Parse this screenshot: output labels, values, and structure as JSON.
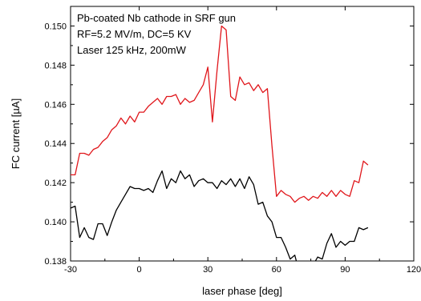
{
  "chart_data": {
    "type": "line",
    "xlabel": "laser phase [deg]",
    "ylabel": "FC current [µA]",
    "xlim": [
      -30,
      120
    ],
    "ylim": [
      0.138,
      0.151
    ],
    "x_ticks": [
      -30,
      0,
      30,
      60,
      90,
      120
    ],
    "x_tick_labels": [
      "-30",
      "0",
      "30",
      "60",
      "90",
      "120"
    ],
    "y_ticks": [
      0.138,
      0.14,
      0.142,
      0.144,
      0.146,
      0.148,
      0.15
    ],
    "y_tick_labels": [
      "0.138",
      "0.140",
      "0.142",
      "0.144",
      "0.146",
      "0.148",
      "0.150"
    ],
    "annotation": [
      "Pb-coated Nb cathode in SRF gun",
      "RF=5.2 MV/m, DC=5 KV",
      "Laser 125 kHz, 200mW"
    ],
    "grid": false,
    "series": [
      {
        "color": "#e0161b",
        "x": [
          -30,
          -28,
          -26,
          -24,
          -22,
          -20,
          -18,
          -16,
          -14,
          -12,
          -10,
          -8,
          -6,
          -4,
          -2,
          0,
          2,
          4,
          6,
          8,
          10,
          12,
          14,
          16,
          18,
          20,
          22,
          24,
          26,
          28,
          30,
          32,
          34,
          36,
          38,
          40,
          42,
          44,
          46,
          48,
          50,
          52,
          54,
          56,
          58,
          60,
          62,
          64,
          66,
          68,
          70,
          72,
          74,
          76,
          78,
          80,
          82,
          84,
          86,
          88,
          90,
          92,
          94,
          96,
          98,
          100
        ],
        "y": [
          0.1424,
          0.1424,
          0.1435,
          0.1435,
          0.1434,
          0.1437,
          0.1438,
          0.1441,
          0.1443,
          0.1447,
          0.1449,
          0.1453,
          0.145,
          0.1454,
          0.1451,
          0.1456,
          0.1456,
          0.1459,
          0.1461,
          0.1463,
          0.146,
          0.1464,
          0.1464,
          0.1465,
          0.146,
          0.1463,
          0.1461,
          0.1462,
          0.1466,
          0.147,
          0.1479,
          0.1451,
          0.1477,
          0.15,
          0.1498,
          0.1464,
          0.1462,
          0.1474,
          0.147,
          0.1471,
          0.1467,
          0.147,
          0.1466,
          0.1468,
          0.1439,
          0.1413,
          0.1416,
          0.1414,
          0.1413,
          0.141,
          0.1412,
          0.1413,
          0.1411,
          0.1413,
          0.1412,
          0.1415,
          0.1413,
          0.1416,
          0.1413,
          0.1416,
          0.1414,
          0.1413,
          0.1421,
          0.142,
          0.1431,
          0.1429
        ]
      },
      {
        "color": "#000000",
        "x": [
          -30,
          -28,
          -26,
          -24,
          -22,
          -20,
          -18,
          -16,
          -14,
          -12,
          -10,
          -8,
          -6,
          -4,
          -2,
          0,
          2,
          4,
          6,
          8,
          10,
          12,
          14,
          16,
          18,
          20,
          22,
          24,
          26,
          28,
          30,
          32,
          34,
          36,
          38,
          40,
          42,
          44,
          46,
          48,
          50,
          52,
          54,
          56,
          58,
          60,
          62,
          64,
          66,
          68,
          70,
          72,
          74,
          76,
          78,
          80,
          82,
          84,
          86,
          88,
          90,
          92,
          94,
          96,
          98,
          100
        ],
        "y": [
          0.1407,
          0.1408,
          0.1392,
          0.1397,
          0.1392,
          0.1391,
          0.1399,
          0.1399,
          0.1393,
          0.14,
          0.1406,
          0.141,
          0.1414,
          0.1418,
          0.1417,
          0.1417,
          0.1416,
          0.1417,
          0.1415,
          0.1421,
          0.1426,
          0.1417,
          0.1422,
          0.142,
          0.1426,
          0.1422,
          0.1424,
          0.1418,
          0.1421,
          0.1422,
          0.142,
          0.142,
          0.1417,
          0.1421,
          0.1419,
          0.1422,
          0.1418,
          0.1422,
          0.1417,
          0.1423,
          0.1419,
          0.1409,
          0.141,
          0.1403,
          0.14,
          0.1392,
          0.1392,
          0.1387,
          0.1381,
          0.1383,
          0.1374,
          0.1373,
          0.1372,
          0.1378,
          0.1382,
          0.1381,
          0.1389,
          0.1394,
          0.1387,
          0.139,
          0.1388,
          0.139,
          0.139,
          0.1397,
          0.1396,
          0.1397
        ]
      }
    ]
  }
}
